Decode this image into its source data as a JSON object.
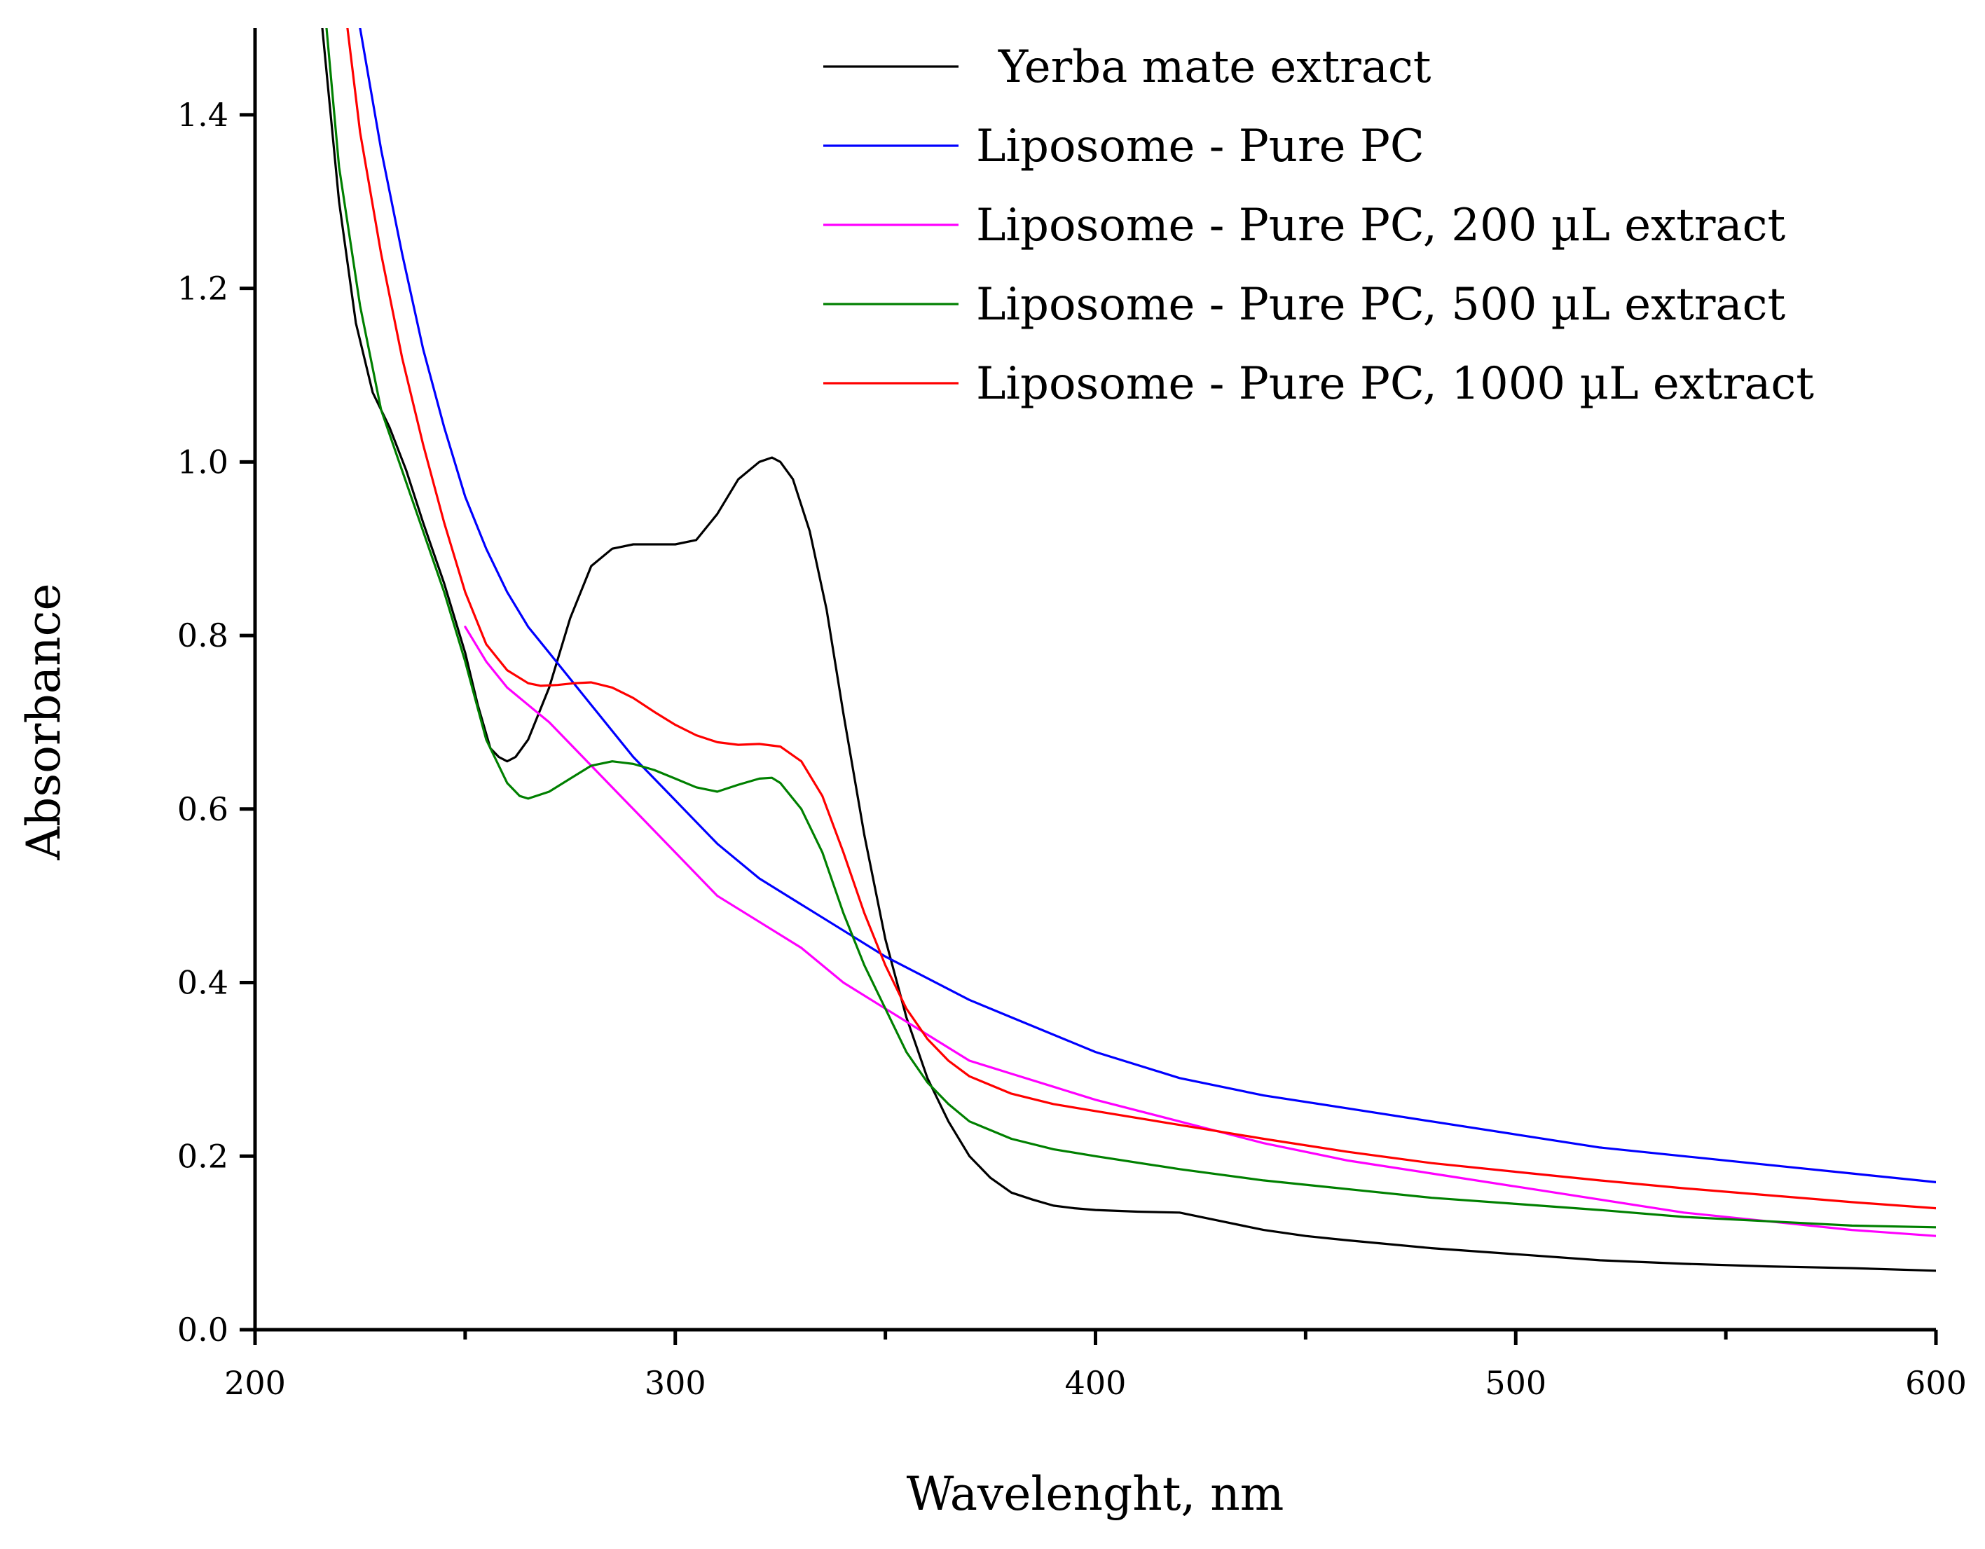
{
  "chart_data": {
    "type": "line",
    "title": "",
    "xlabel": "Wavelenght, nm",
    "ylabel": "Absorbance",
    "xlim": [
      200,
      600
    ],
    "ylim": [
      0,
      1.5
    ],
    "x_ticks": [
      200,
      300,
      400,
      500,
      600
    ],
    "x_tick_labels": [
      "200",
      "300",
      "400",
      "500",
      "600"
    ],
    "x_minor_ticks": [
      250,
      350,
      450,
      550
    ],
    "y_ticks": [
      0,
      0.2,
      0.4,
      0.6,
      0.8,
      1.0,
      1.2,
      1.4
    ],
    "y_tick_labels": [
      "0.0",
      "0.2",
      "0.4",
      "0.6",
      "0.8",
      "1.0",
      "1.2",
      "1.4"
    ],
    "grid": false,
    "legend_position": "top-right",
    "series": [
      {
        "name": "Yerba mate extract",
        "color": "#000000",
        "x": [
          216,
          220,
          224,
          228,
          232,
          236,
          240,
          245,
          250,
          253,
          256,
          258,
          260,
          262,
          265,
          270,
          275,
          280,
          285,
          290,
          295,
          300,
          305,
          310,
          315,
          320,
          323,
          325,
          328,
          332,
          336,
          340,
          345,
          350,
          355,
          360,
          365,
          370,
          375,
          380,
          385,
          390,
          395,
          400,
          410,
          420,
          430,
          440,
          450,
          460,
          480,
          500,
          520,
          540,
          560,
          580,
          600
        ],
        "y": [
          1.5,
          1.3,
          1.16,
          1.08,
          1.04,
          0.99,
          0.93,
          0.86,
          0.78,
          0.72,
          0.67,
          0.66,
          0.655,
          0.66,
          0.68,
          0.74,
          0.82,
          0.88,
          0.9,
          0.905,
          0.905,
          0.905,
          0.91,
          0.94,
          0.98,
          1.0,
          1.005,
          1.0,
          0.98,
          0.92,
          0.83,
          0.71,
          0.57,
          0.45,
          0.36,
          0.29,
          0.24,
          0.2,
          0.175,
          0.158,
          0.15,
          0.143,
          0.14,
          0.138,
          0.136,
          0.135,
          0.125,
          0.115,
          0.108,
          0.103,
          0.094,
          0.087,
          0.08,
          0.076,
          0.073,
          0.071,
          0.068
        ]
      },
      {
        "name": "Liposome - Pure PC",
        "color": "#0000ff",
        "x": [
          225,
          230,
          235,
          240,
          245,
          250,
          255,
          260,
          265,
          270,
          280,
          290,
          300,
          310,
          320,
          330,
          340,
          350,
          360,
          370,
          380,
          400,
          420,
          440,
          460,
          480,
          500,
          520,
          540,
          560,
          580,
          600
        ],
        "y": [
          1.5,
          1.36,
          1.24,
          1.13,
          1.04,
          0.96,
          0.9,
          0.85,
          0.81,
          0.78,
          0.72,
          0.66,
          0.61,
          0.56,
          0.52,
          0.49,
          0.46,
          0.43,
          0.405,
          0.38,
          0.36,
          0.32,
          0.29,
          0.27,
          0.255,
          0.24,
          0.225,
          0.21,
          0.2,
          0.19,
          0.18,
          0.17
        ]
      },
      {
        "name": "Liposome - Pure PC, 200 µL extract",
        "color": "#ff00ff",
        "x": [
          250,
          255,
          260,
          265,
          270,
          280,
          290,
          300,
          310,
          320,
          330,
          340,
          350,
          360,
          370,
          380,
          390,
          400,
          420,
          440,
          460,
          480,
          500,
          520,
          540,
          560,
          580,
          600
        ],
        "y": [
          0.81,
          0.77,
          0.74,
          0.72,
          0.7,
          0.65,
          0.6,
          0.55,
          0.5,
          0.47,
          0.44,
          0.4,
          0.37,
          0.34,
          0.31,
          0.295,
          0.28,
          0.265,
          0.24,
          0.215,
          0.195,
          0.18,
          0.165,
          0.15,
          0.135,
          0.125,
          0.115,
          0.108
        ]
      },
      {
        "name": "Liposome - Pure PC, 500 µL extract",
        "color": "#008000",
        "x": [
          217,
          220,
          225,
          230,
          235,
          240,
          245,
          250,
          255,
          260,
          263,
          265,
          270,
          275,
          280,
          285,
          290,
          295,
          300,
          305,
          310,
          315,
          320,
          323,
          325,
          330,
          335,
          340,
          345,
          350,
          355,
          360,
          365,
          370,
          380,
          390,
          400,
          420,
          440,
          460,
          480,
          500,
          520,
          540,
          560,
          580,
          600
        ],
        "y": [
          1.5,
          1.34,
          1.18,
          1.06,
          0.99,
          0.92,
          0.85,
          0.77,
          0.68,
          0.63,
          0.615,
          0.612,
          0.62,
          0.635,
          0.65,
          0.655,
          0.652,
          0.645,
          0.635,
          0.625,
          0.62,
          0.628,
          0.635,
          0.636,
          0.63,
          0.6,
          0.55,
          0.48,
          0.42,
          0.37,
          0.32,
          0.285,
          0.26,
          0.24,
          0.22,
          0.208,
          0.2,
          0.185,
          0.172,
          0.162,
          0.152,
          0.145,
          0.138,
          0.13,
          0.125,
          0.12,
          0.118
        ]
      },
      {
        "name": "Liposome - Pure PC, 1000 µL extract",
        "color": "#ff0000",
        "x": [
          222,
          225,
          230,
          235,
          240,
          245,
          250,
          255,
          260,
          265,
          268,
          272,
          276,
          280,
          285,
          290,
          295,
          300,
          305,
          310,
          315,
          320,
          325,
          330,
          335,
          340,
          345,
          350,
          355,
          360,
          365,
          370,
          380,
          390,
          400,
          420,
          440,
          460,
          480,
          500,
          520,
          540,
          560,
          580,
          600
        ],
        "y": [
          1.5,
          1.38,
          1.24,
          1.12,
          1.02,
          0.93,
          0.85,
          0.79,
          0.76,
          0.745,
          0.742,
          0.743,
          0.745,
          0.746,
          0.74,
          0.728,
          0.712,
          0.697,
          0.685,
          0.677,
          0.674,
          0.675,
          0.672,
          0.655,
          0.615,
          0.55,
          0.48,
          0.42,
          0.37,
          0.335,
          0.31,
          0.292,
          0.272,
          0.26,
          0.252,
          0.236,
          0.22,
          0.205,
          0.192,
          0.182,
          0.172,
          0.163,
          0.155,
          0.147,
          0.14
        ]
      }
    ]
  }
}
